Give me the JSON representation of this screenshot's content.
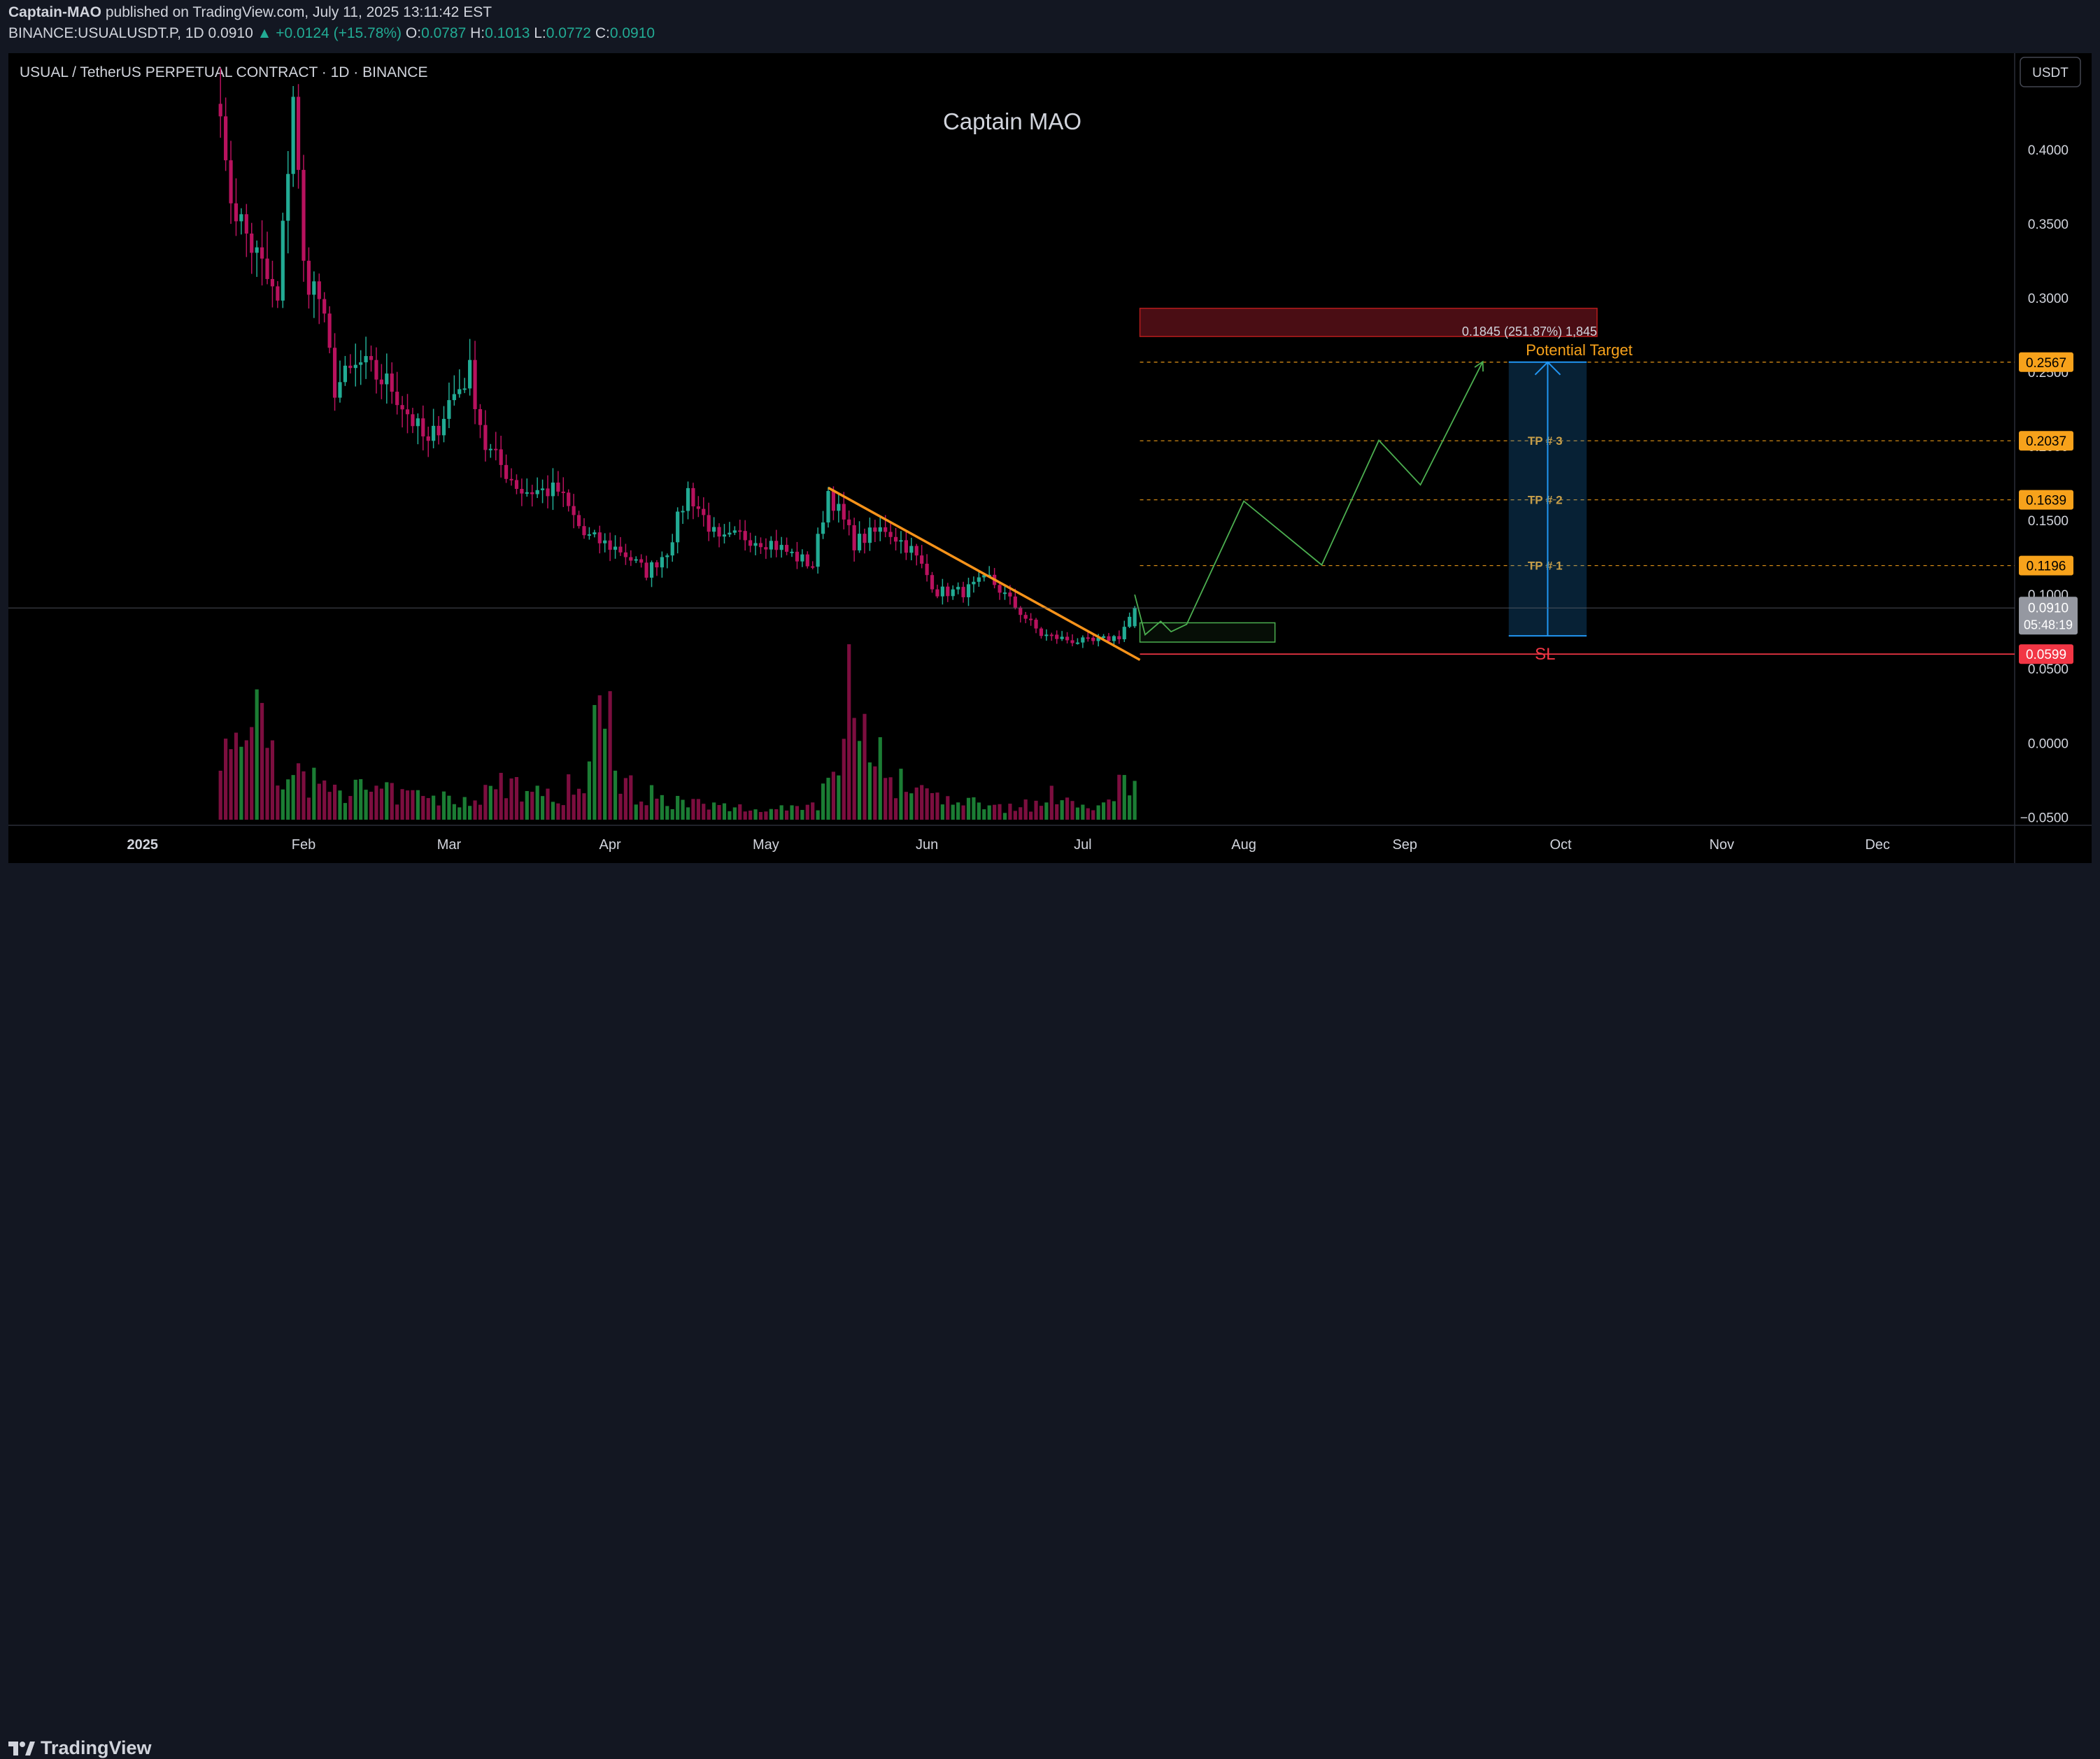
{
  "header": {
    "publisher": "Captain-MAO",
    "published_text": "published on TradingView.com, July 11, 2025 13:11:42 EST",
    "symbol": "BINANCE:USUALUSDT.P, 1D",
    "last": "0.0910",
    "change": "▲ +0.0124 (+15.78%)",
    "o_label": "O:",
    "o": "0.0787",
    "h_label": "H:",
    "h": "0.1013",
    "l_label": "L:",
    "l": "0.0772",
    "c_label": "C:",
    "c": "0.0910"
  },
  "chart": {
    "instrument_title": "USUAL / TetherUS PERPETUAL CONTRACT · 1D · BINANCE",
    "watermark": "Captain MAO",
    "currency_button": "USDT"
  },
  "footer": {
    "brand": "TradingView"
  },
  "chart_data": {
    "type": "candlestick",
    "y_axis_ticks": [
      "0.4000",
      "0.3500",
      "0.3000",
      "0.2500",
      "0.2000",
      "0.1500",
      "0.1000",
      "0.0500",
      "0.0000",
      "−0.0500"
    ],
    "ylim": [
      -0.0555,
      0.465
    ],
    "x_axis_ticks": [
      "2025",
      "Feb",
      "Mar",
      "Apr",
      "May",
      "Jun",
      "Jul",
      "Aug",
      "Sep",
      "Oct",
      "Nov",
      "Dec"
    ],
    "price_segments": [
      {
        "date": "2025-01-16",
        "price": 0.44
      },
      {
        "date": "2025-01-17",
        "price": 0.38
      },
      {
        "date": "2025-01-20",
        "price": 0.35
      },
      {
        "date": "2025-01-24",
        "price": 0.32
      },
      {
        "date": "2025-01-27",
        "price": 0.295
      },
      {
        "date": "2025-01-30",
        "price": 0.44
      },
      {
        "date": "2025-02-01",
        "price": 0.32
      },
      {
        "date": "2025-02-04",
        "price": 0.3
      },
      {
        "date": "2025-02-07",
        "price": 0.24
      },
      {
        "date": "2025-02-12",
        "price": 0.255
      },
      {
        "date": "2025-02-18",
        "price": 0.24
      },
      {
        "date": "2025-02-25",
        "price": 0.2
      },
      {
        "date": "2025-03-01",
        "price": 0.23
      },
      {
        "date": "2025-03-05",
        "price": 0.25
      },
      {
        "date": "2025-03-08",
        "price": 0.2
      },
      {
        "date": "2025-03-15",
        "price": 0.17
      },
      {
        "date": "2025-03-22",
        "price": 0.17
      },
      {
        "date": "2025-03-27",
        "price": 0.14
      },
      {
        "date": "2025-04-03",
        "price": 0.13
      },
      {
        "date": "2025-04-08",
        "price": 0.115
      },
      {
        "date": "2025-04-12",
        "price": 0.13
      },
      {
        "date": "2025-04-16",
        "price": 0.17
      },
      {
        "date": "2025-04-22",
        "price": 0.135
      },
      {
        "date": "2025-04-26",
        "price": 0.14
      },
      {
        "date": "2025-05-02",
        "price": 0.135
      },
      {
        "date": "2025-05-07",
        "price": 0.125
      },
      {
        "date": "2025-05-10",
        "price": 0.12
      },
      {
        "date": "2025-05-13",
        "price": 0.17
      },
      {
        "date": "2025-05-18",
        "price": 0.135
      },
      {
        "date": "2025-05-24",
        "price": 0.145
      },
      {
        "date": "2025-05-29",
        "price": 0.13
      },
      {
        "date": "2025-06-03",
        "price": 0.102
      },
      {
        "date": "2025-06-08",
        "price": 0.102
      },
      {
        "date": "2025-06-13",
        "price": 0.111
      },
      {
        "date": "2025-06-18",
        "price": 0.092
      },
      {
        "date": "2025-06-23",
        "price": 0.073
      },
      {
        "date": "2025-06-29",
        "price": 0.069
      },
      {
        "date": "2025-07-03",
        "price": 0.068
      },
      {
        "date": "2025-07-08",
        "price": 0.072
      },
      {
        "date": "2025-07-11",
        "price": 0.091
      }
    ],
    "volume_relative": [
      0.55,
      0.78,
      0.45,
      0.3,
      0.28,
      0.25,
      0.22,
      0.2,
      0.18,
      0.16,
      0.15,
      0.22,
      0.3,
      0.19,
      0.2,
      0.25,
      0.8,
      0.35,
      0.2,
      0.15,
      0.12,
      0.1,
      0.09,
      0.08,
      0.1,
      0.12,
      0.35,
      1.0,
      0.6,
      0.3,
      0.22,
      0.2,
      0.12,
      0.15,
      0.1,
      0.12,
      0.18,
      0.14,
      0.12,
      0.3
    ],
    "current_price": {
      "value": "0.0910",
      "countdown": "05:48:19"
    },
    "price_labels": [
      {
        "value": "0.2567",
        "price": 0.2567,
        "color": "#f7a21b"
      },
      {
        "value": "0.2037",
        "price": 0.2037,
        "color": "#f7a21b"
      },
      {
        "value": "0.1639",
        "price": 0.1639,
        "color": "#f7a21b"
      },
      {
        "value": "0.1196",
        "price": 0.1196,
        "color": "#f7a21b"
      },
      {
        "value": "0.0599",
        "price": 0.0599,
        "color": "#f23645"
      }
    ],
    "annotations": {
      "tp_labels": [
        "TP # 3",
        "TP # 2",
        "TP # 1"
      ],
      "sl_label": "SL",
      "potential_target": "Potential Target",
      "measure_text": "0.1845 (251.87%) 1,845",
      "trendline": {
        "from": {
          "date": "2025-05-13",
          "price": 0.172
        },
        "to": {
          "date": "2025-07-12",
          "price": 0.056
        }
      },
      "projection_path": [
        {
          "date": "2025-07-11",
          "price": 0.1
        },
        {
          "date": "2025-07-13",
          "price": 0.073
        },
        {
          "date": "2025-07-16",
          "price": 0.082
        },
        {
          "date": "2025-07-18",
          "price": 0.075
        },
        {
          "date": "2025-07-21",
          "price": 0.08
        },
        {
          "date": "2025-08-01",
          "price": 0.163
        },
        {
          "date": "2025-08-16",
          "price": 0.12
        },
        {
          "date": "2025-08-27",
          "price": 0.204
        },
        {
          "date": "2025-09-04",
          "price": 0.174
        },
        {
          "date": "2025-09-16",
          "price": 0.257
        }
      ],
      "entry_box": {
        "from_date": "2025-07-12",
        "to_date": "2025-08-07",
        "top": 0.081,
        "bottom": 0.068
      },
      "target_zone": {
        "from_date": "2025-07-12",
        "to_date": "2025-10-08",
        "top": 0.293,
        "bottom": 0.274
      },
      "measure_box": {
        "from_date": "2025-09-21",
        "to_date": "2025-10-06",
        "top": 0.2567,
        "bottom": 0.0722
      }
    },
    "colors": {
      "up": "#22ab94",
      "down": "#b8125e",
      "background": "#000000",
      "projection": "#4caf50",
      "trendline": "#f7931a",
      "level": "#f7a21b",
      "stop": "#f23645",
      "measure": "#2196f3",
      "target_zone": "#b71c1c"
    }
  }
}
